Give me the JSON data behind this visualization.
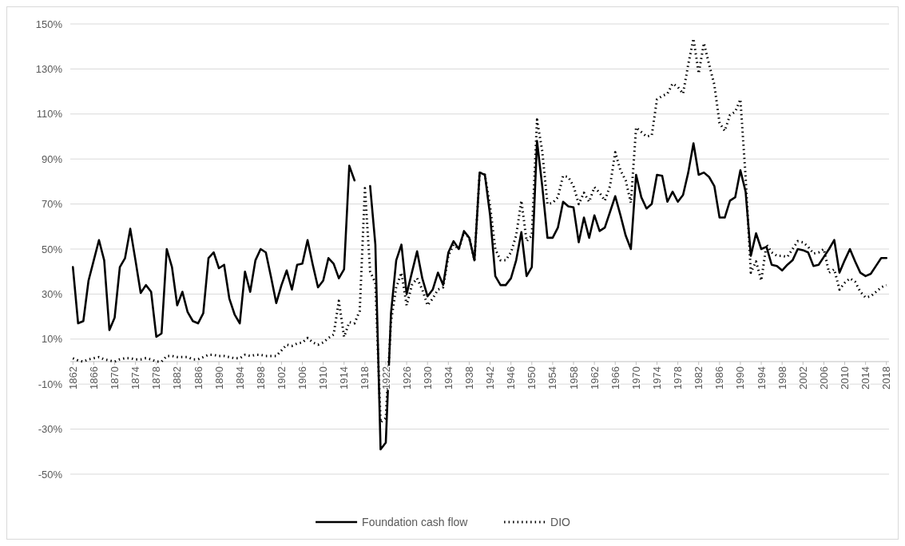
{
  "chart_data": {
    "type": "line",
    "x": [
      1862,
      1863,
      1864,
      1865,
      1866,
      1867,
      1868,
      1869,
      1870,
      1871,
      1872,
      1873,
      1874,
      1875,
      1876,
      1877,
      1878,
      1879,
      1880,
      1881,
      1882,
      1883,
      1884,
      1885,
      1886,
      1887,
      1888,
      1889,
      1890,
      1891,
      1892,
      1893,
      1894,
      1895,
      1896,
      1897,
      1898,
      1899,
      1900,
      1901,
      1902,
      1903,
      1904,
      1905,
      1906,
      1907,
      1908,
      1909,
      1910,
      1911,
      1912,
      1913,
      1914,
      1915,
      1916,
      1917,
      1918,
      1919,
      1920,
      1921,
      1922,
      1923,
      1924,
      1925,
      1926,
      1927,
      1928,
      1929,
      1930,
      1931,
      1932,
      1933,
      1934,
      1935,
      1936,
      1937,
      1938,
      1939,
      1940,
      1941,
      1942,
      1943,
      1944,
      1945,
      1946,
      1947,
      1948,
      1949,
      1950,
      1951,
      1952,
      1953,
      1954,
      1955,
      1956,
      1957,
      1958,
      1959,
      1960,
      1961,
      1962,
      1963,
      1964,
      1965,
      1966,
      1967,
      1968,
      1969,
      1970,
      1971,
      1972,
      1973,
      1974,
      1975,
      1976,
      1977,
      1978,
      1979,
      1980,
      1981,
      1982,
      1983,
      1984,
      1985,
      1986,
      1987,
      1988,
      1989,
      1990,
      1991,
      1992,
      1993,
      1994,
      1995,
      1996,
      1997,
      1998,
      1999,
      2000,
      2001,
      2002,
      2003,
      2004,
      2005,
      2006,
      2007,
      2008,
      2009,
      2010,
      2011,
      2012,
      2013,
      2014,
      2015,
      2016,
      2017,
      2018
    ],
    "xlim": [
      1861.5,
      2018.5
    ],
    "xticks": [
      1862,
      1866,
      1870,
      1874,
      1878,
      1882,
      1886,
      1890,
      1894,
      1898,
      1902,
      1906,
      1910,
      1914,
      1918,
      1922,
      1926,
      1930,
      1934,
      1938,
      1942,
      1946,
      1950,
      1954,
      1958,
      1962,
      1966,
      1970,
      1974,
      1978,
      1982,
      1986,
      1990,
      1994,
      1998,
      2002,
      2006,
      2010,
      2014,
      2018
    ],
    "ylim": [
      -50,
      150
    ],
    "yticks": [
      {
        "value": -50,
        "label": "-50%"
      },
      {
        "value": -30,
        "label": "-30%"
      },
      {
        "value": -10,
        "label": "-10%"
      },
      {
        "value": 10,
        "label": "10%"
      },
      {
        "value": 30,
        "label": "30%"
      },
      {
        "value": 50,
        "label": "50%"
      },
      {
        "value": 70,
        "label": "70%"
      },
      {
        "value": 90,
        "label": "90%"
      },
      {
        "value": 110,
        "label": "110%"
      },
      {
        "value": 130,
        "label": "130%"
      },
      {
        "value": 150,
        "label": "150%"
      }
    ],
    "grid": "y",
    "legend": "bottom",
    "series": [
      {
        "name": "Foundation cash flow",
        "color": "#000000",
        "line_style": "solid",
        "values": [
          42,
          17,
          18,
          36,
          45,
          54,
          45,
          14,
          19.5,
          42,
          46,
          59,
          45,
          30.5,
          34,
          31,
          11,
          12.5,
          50,
          42,
          25,
          31,
          22,
          18,
          17,
          21.5,
          46,
          48.5,
          41.5,
          43,
          28,
          21,
          17,
          40,
          31,
          45,
          50,
          48.5,
          37.5,
          26,
          34,
          40.5,
          32,
          43,
          43.5,
          54,
          43,
          33,
          36,
          46,
          43.5,
          37,
          41,
          87,
          80.5,
          null,
          null,
          78,
          52,
          -39,
          -36,
          21.5,
          45,
          52,
          30,
          39.5,
          49,
          37,
          29,
          32,
          39.5,
          34,
          48.5,
          53.5,
          50,
          58,
          55,
          45,
          84,
          83,
          65,
          38,
          34,
          34,
          37,
          45,
          57.5,
          38,
          42,
          98,
          78,
          55,
          55,
          59.5,
          71,
          69,
          68.5,
          53,
          64,
          55,
          65,
          58,
          59.5,
          66.5,
          73.5,
          65,
          56,
          50,
          83,
          73,
          68,
          70,
          83,
          82.5,
          71,
          75.5,
          71,
          74,
          84,
          97,
          83,
          84,
          82,
          78,
          64,
          64,
          71.5,
          73,
          85,
          75.5,
          47,
          57,
          50,
          51,
          43,
          42.5,
          40.5,
          43,
          45,
          50,
          49.5,
          48.5,
          42.5,
          43,
          46.5,
          50,
          54,
          39.5,
          45,
          50,
          44.5,
          39.5,
          38,
          39,
          42.5,
          46,
          46
        ]
      },
      {
        "name": "DIO",
        "color": "#000000",
        "line_style": "dotted",
        "values": [
          1.5,
          0.5,
          0,
          1,
          1.5,
          2,
          1,
          0.5,
          0,
          1,
          1.5,
          1.5,
          1,
          1,
          1.5,
          1,
          0,
          0,
          2.5,
          2.5,
          2,
          2,
          2,
          1,
          1,
          2,
          3,
          3,
          2.5,
          2.5,
          2,
          1.5,
          1.5,
          3,
          2.5,
          3,
          3,
          2.5,
          2.5,
          2.5,
          5,
          7.5,
          7,
          8,
          8.5,
          10.5,
          8.5,
          7.5,
          8.5,
          10.5,
          12,
          27,
          11,
          17.5,
          17,
          22.5,
          77,
          40,
          35,
          -27,
          -25,
          18,
          33,
          39.5,
          25,
          34,
          37,
          32,
          25,
          28,
          32,
          33,
          47,
          52,
          50,
          57.5,
          55,
          45,
          84,
          83,
          69,
          50,
          45,
          45,
          48.5,
          56,
          71.5,
          53.5,
          56,
          107.5,
          93.5,
          70,
          70.5,
          73,
          82.5,
          82,
          78,
          70,
          75,
          71,
          77.5,
          75,
          71.5,
          78,
          93,
          85,
          80.5,
          70.5,
          104,
          102,
          100,
          100.5,
          116.5,
          118,
          119,
          123.5,
          122,
          119,
          132,
          143.5,
          128,
          141.5,
          132,
          123,
          106,
          102.5,
          109.5,
          111,
          116.5,
          82,
          39.5,
          44.5,
          36,
          52,
          48.5,
          47,
          47,
          46.5,
          50,
          53.5,
          53,
          51,
          48,
          48.5,
          50,
          39.5,
          41,
          32,
          35,
          37,
          35.5,
          31,
          28.5,
          29,
          31,
          33,
          34
        ]
      }
    ]
  }
}
